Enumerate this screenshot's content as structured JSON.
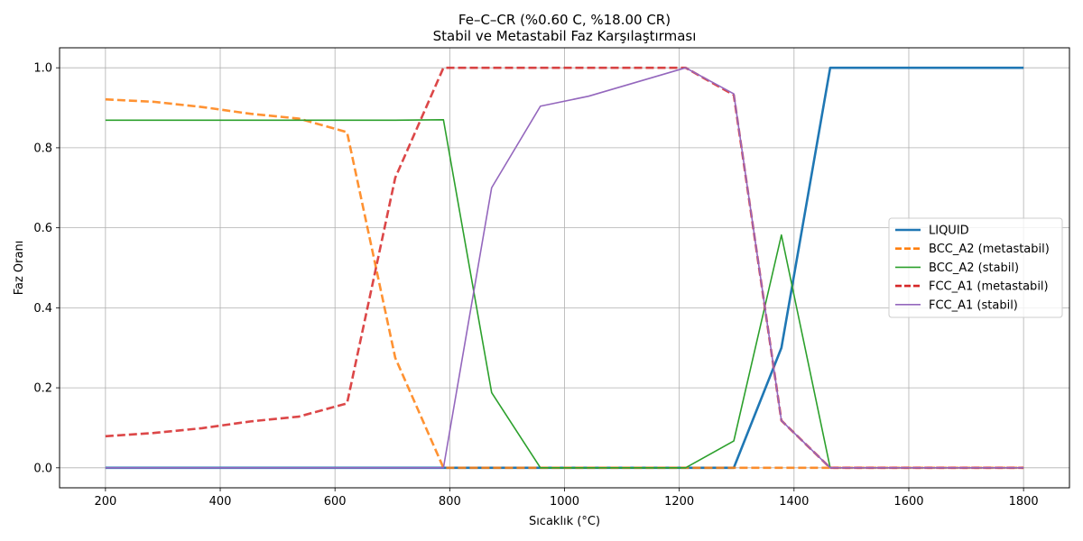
{
  "chart_data": {
    "type": "line",
    "title_line1": "Fe–C–CR (%0.60 C, %18.00 CR)",
    "title_line2": "Stabil ve Metastabil Faz Karşılaştırması",
    "xlabel": "Sıcaklık (°C)",
    "ylabel": "Faz Oranı",
    "xlim": [
      120,
      1880
    ],
    "ylim": [
      -0.05,
      1.05
    ],
    "xticks": [
      200,
      400,
      600,
      800,
      1000,
      1200,
      1400,
      1600,
      1800
    ],
    "yticks": [
      0.0,
      0.2,
      0.4,
      0.6,
      0.8,
      1.0
    ],
    "xtick_labels": [
      "200",
      "400",
      "600",
      "800",
      "1000",
      "1200",
      "1400",
      "1600",
      "1800"
    ],
    "ytick_labels": [
      "0.0",
      "0.2",
      "0.4",
      "0.6",
      "0.8",
      "1.0"
    ],
    "grid": true,
    "legend_position": "center-right",
    "series": [
      {
        "name": "LIQUID",
        "color": "#1f77b4",
        "dash": "solid",
        "width": "thick",
        "points": [
          [
            200,
            0.0
          ],
          [
            1295,
            0.0
          ],
          [
            1378,
            0.3
          ],
          [
            1463,
            1.0
          ],
          [
            1800,
            1.0
          ]
        ]
      },
      {
        "name": "BCC_A2 (metastabil)",
        "color": "#ff7f0e",
        "dash": "dashed",
        "width": "thick",
        "points": [
          [
            200,
            0.921
          ],
          [
            284,
            0.915
          ],
          [
            368,
            0.902
          ],
          [
            453,
            0.885
          ],
          [
            537,
            0.873
          ],
          [
            621,
            0.839
          ],
          [
            705,
            0.275
          ],
          [
            789,
            0.0
          ],
          [
            1800,
            0.0
          ]
        ]
      },
      {
        "name": "BCC_A2 (stabil)",
        "color": "#2ca02c",
        "dash": "solid",
        "width": "thin",
        "points": [
          [
            200,
            0.869
          ],
          [
            705,
            0.869
          ],
          [
            789,
            0.87
          ],
          [
            873,
            0.188
          ],
          [
            958,
            0.0
          ],
          [
            1211,
            0.0
          ],
          [
            1295,
            0.067
          ],
          [
            1378,
            0.582
          ],
          [
            1463,
            0.0
          ],
          [
            1800,
            0.0
          ]
        ]
      },
      {
        "name": "FCC_A1 (metastabil)",
        "color": "#d62728",
        "dash": "dashed",
        "width": "thick",
        "points": [
          [
            200,
            0.079
          ],
          [
            284,
            0.087
          ],
          [
            368,
            0.099
          ],
          [
            453,
            0.116
          ],
          [
            537,
            0.128
          ],
          [
            621,
            0.161
          ],
          [
            705,
            0.725
          ],
          [
            789,
            1.0
          ],
          [
            1211,
            1.0
          ],
          [
            1295,
            0.932
          ],
          [
            1378,
            0.118
          ],
          [
            1463,
            0.0
          ],
          [
            1800,
            0.0
          ]
        ]
      },
      {
        "name": "FCC_A1 (stabil)",
        "color": "#9467bd",
        "dash": "solid",
        "width": "thin",
        "points": [
          [
            200,
            0.0
          ],
          [
            789,
            0.0
          ],
          [
            873,
            0.7
          ],
          [
            958,
            0.904
          ],
          [
            1042,
            0.929
          ],
          [
            1211,
            1.0
          ],
          [
            1295,
            0.935
          ],
          [
            1378,
            0.118
          ],
          [
            1463,
            0.0
          ],
          [
            1800,
            0.0
          ]
        ]
      }
    ]
  }
}
